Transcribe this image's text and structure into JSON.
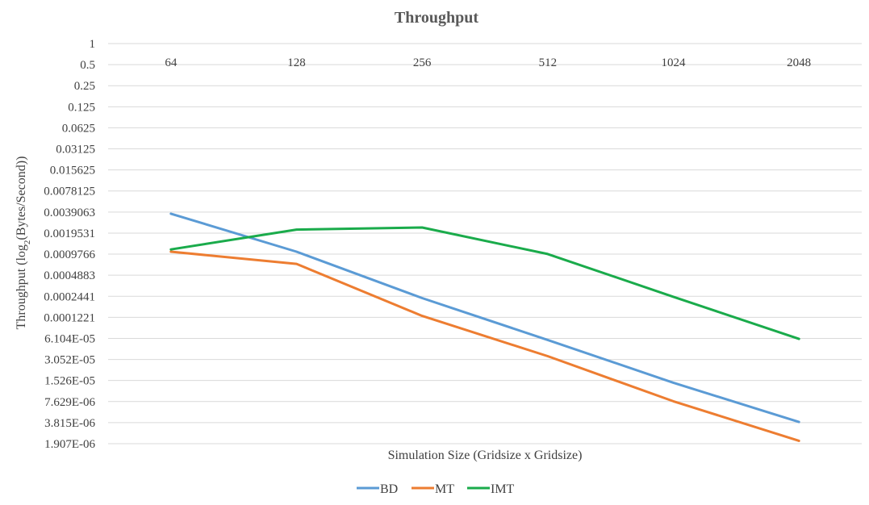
{
  "chart_data": {
    "type": "line",
    "title": "Throughput",
    "xlabel": "Simulation  Size (Gridsize x Gridsize)",
    "ylabel": "Throughput (log2(Bytes/Second))",
    "ylabel_parts": {
      "before": "Throughput (log",
      "sub": "2",
      "after": "(Bytes/Second))"
    },
    "y_scale": "log2",
    "ylim": [
      1.907e-06,
      1
    ],
    "yticks": [
      "1",
      "0.5",
      "0.25",
      "0.125",
      "0.0625",
      "0.03125",
      "0.015625",
      "0.0078125",
      "0.0039063",
      "0.0019531",
      "0.0009766",
      "0.0004883",
      "0.0002441",
      "0.0001221",
      "6.104E-05",
      "3.052E-05",
      "1.526E-05",
      "7.629E-06",
      "3.815E-06",
      "1.907E-06"
    ],
    "categories": [
      "64",
      "128",
      "256",
      "512",
      "1024",
      "2048"
    ],
    "grid": true,
    "legend_position": "bottom",
    "series": [
      {
        "name": "BD",
        "color": "#5b9bd5",
        "values": [
          0.0037,
          0.00106,
          0.00023,
          5.8e-05,
          1.42e-05,
          3.9e-06
        ]
      },
      {
        "name": "MT",
        "color": "#ed7d31",
        "values": [
          0.00106,
          0.00071,
          0.000128,
          3.4e-05,
          7.7e-06,
          2.1e-06
        ]
      },
      {
        "name": "IMT",
        "color": "#1aab4b",
        "values": [
          0.00114,
          0.00219,
          0.00235,
          0.00098,
          0.00024,
          6e-05
        ]
      }
    ]
  }
}
